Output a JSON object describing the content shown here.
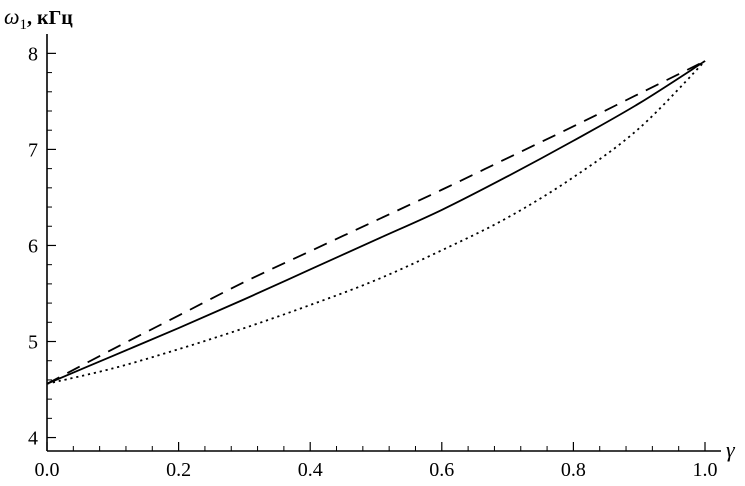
{
  "chart_data": {
    "type": "line",
    "title": "",
    "ylabel": "ω",
    "ylabel_subscript": "1",
    "ylabel_unit": ", кГц",
    "xlabel": "γ",
    "xlim": [
      0,
      1.0
    ],
    "ylim": [
      3.86,
      8.16
    ],
    "x_ticks": [
      0.0,
      0.2,
      0.4,
      0.6,
      0.8,
      1.0
    ],
    "x_tick_labels": [
      "0.0",
      "0.2",
      "0.4",
      "0.6",
      "0.8",
      "1.0"
    ],
    "y_ticks": [
      4,
      5,
      6,
      7,
      8
    ],
    "y_tick_labels": [
      "4",
      "5",
      "6",
      "7",
      "8"
    ],
    "grid": false,
    "legend": "none",
    "colors": {
      "line": "#000000",
      "axis": "#000000",
      "background": "#ffffff"
    },
    "series": [
      {
        "style": "dashed",
        "x": [
          0.0,
          0.1,
          0.2,
          0.3,
          0.4,
          0.5,
          0.6,
          0.7,
          0.8,
          0.9,
          1.0
        ],
        "y": [
          4.56,
          4.92,
          5.27,
          5.62,
          5.94,
          6.26,
          6.58,
          6.91,
          7.24,
          7.58,
          7.92
        ]
      },
      {
        "style": "solid",
        "x": [
          0.0,
          0.1,
          0.2,
          0.3,
          0.4,
          0.5,
          0.6,
          0.7,
          0.8,
          0.9,
          1.0
        ],
        "y": [
          4.56,
          4.85,
          5.14,
          5.44,
          5.75,
          6.06,
          6.37,
          6.72,
          7.09,
          7.48,
          7.92
        ]
      },
      {
        "style": "dotted",
        "x": [
          0.0,
          0.1,
          0.2,
          0.3,
          0.4,
          0.5,
          0.6,
          0.7,
          0.8,
          0.9,
          1.0
        ],
        "y": [
          4.56,
          4.72,
          4.92,
          5.14,
          5.38,
          5.64,
          5.95,
          6.29,
          6.71,
          7.22,
          7.92
        ]
      }
    ]
  }
}
